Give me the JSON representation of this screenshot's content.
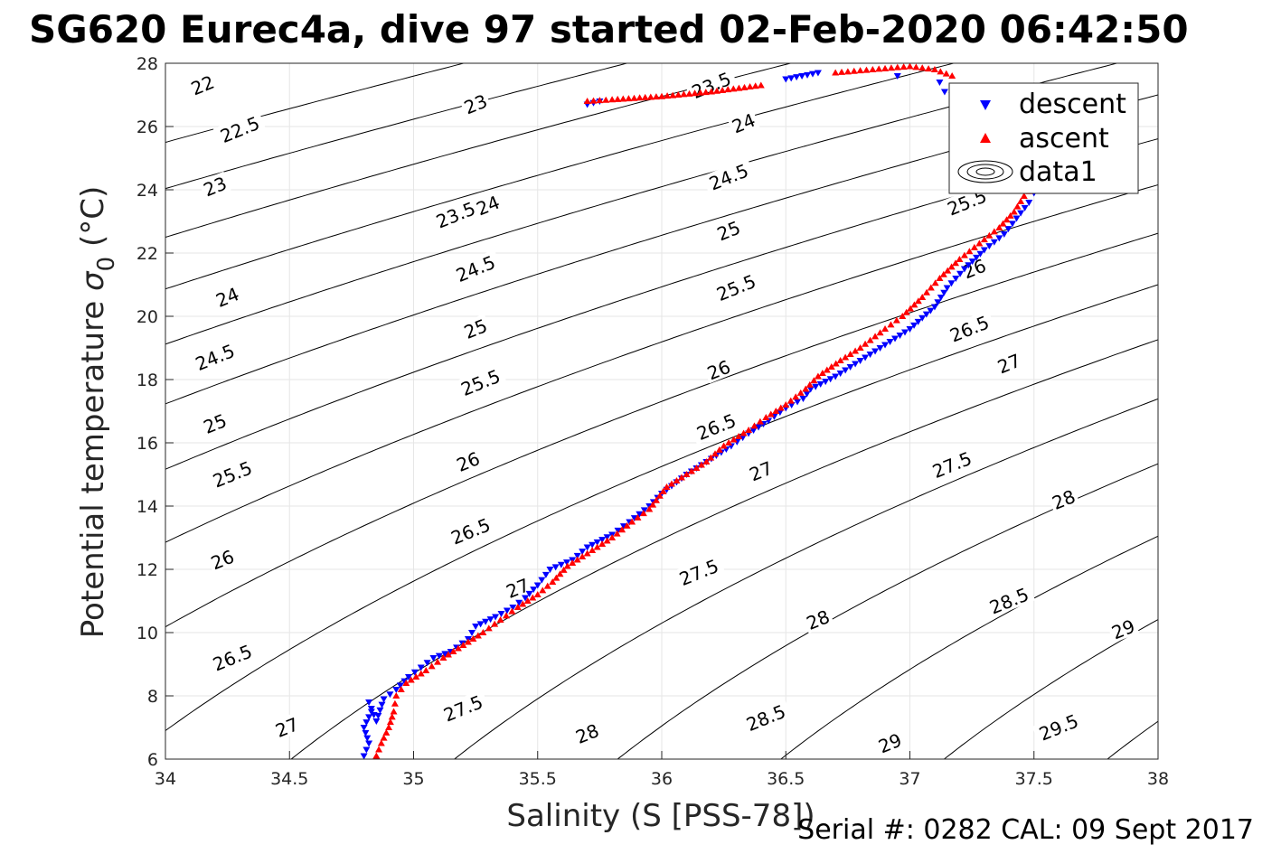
{
  "chart_data": {
    "type": "scatter",
    "title": "SG620 Eurec4a, dive 97 started 02-Feb-2020 06:42:50",
    "xlabel": "Salinity (S [PSS-78])",
    "ylabel_main": "Potential temperature",
    "ylabel_symbol": "σ",
    "ylabel_subscript": "0",
    "ylabel_unit": "(°C)",
    "xlim": [
      34,
      38
    ],
    "ylim": [
      6,
      28
    ],
    "x_ticks": [
      "34",
      "34.5",
      "35",
      "35.5",
      "36",
      "36.5",
      "37",
      "37.5",
      "38"
    ],
    "y_ticks": [
      "6",
      "8",
      "10",
      "12",
      "14",
      "16",
      "18",
      "20",
      "22",
      "24",
      "26",
      "28"
    ],
    "grid": true,
    "legend_placement": "top-right",
    "legend": [
      "descent",
      "ascent",
      "data1"
    ],
    "footer": "Serial #: 0282  CAL: 09 Sept 2017",
    "contour_levels": [
      22,
      22.5,
      23,
      23.5,
      24,
      24.5,
      25,
      25.5,
      26,
      26.5,
      27,
      27.5,
      28,
      28.5,
      29,
      29.5
    ],
    "contour_labels": [
      {
        "text": "22",
        "s": 34.15,
        "t": 27.3
      },
      {
        "text": "22.5",
        "s": 34.3,
        "t": 25.9
      },
      {
        "text": "23",
        "s": 34.2,
        "t": 24.1
      },
      {
        "text": "23",
        "s": 35.25,
        "t": 26.7
      },
      {
        "text": "23.5",
        "s": 35.17,
        "t": 23.2
      },
      {
        "text": "23.5",
        "s": 36.2,
        "t": 27.3
      },
      {
        "text": "24",
        "s": 34.25,
        "t": 20.6
      },
      {
        "text": "24",
        "s": 35.3,
        "t": 23.5
      },
      {
        "text": "24",
        "s": 36.33,
        "t": 26.1
      },
      {
        "text": "24.5",
        "s": 34.2,
        "t": 18.7
      },
      {
        "text": "24.5",
        "s": 35.25,
        "t": 21.5
      },
      {
        "text": "24.5",
        "s": 36.27,
        "t": 24.4
      },
      {
        "text": "25",
        "s": 34.2,
        "t": 16.6
      },
      {
        "text": "25",
        "s": 35.25,
        "t": 19.6
      },
      {
        "text": "25",
        "s": 36.27,
        "t": 22.7
      },
      {
        "text": "25.5",
        "s": 34.27,
        "t": 15.0
      },
      {
        "text": "25.5",
        "s": 35.27,
        "t": 17.9
      },
      {
        "text": "25.5",
        "s": 36.3,
        "t": 20.9
      },
      {
        "text": "25.5",
        "s": 37.23,
        "t": 23.6
      },
      {
        "text": "26",
        "s": 34.23,
        "t": 12.3
      },
      {
        "text": "26",
        "s": 35.22,
        "t": 15.4
      },
      {
        "text": "26",
        "s": 36.23,
        "t": 18.3
      },
      {
        "text": "26",
        "s": 37.26,
        "t": 21.5
      },
      {
        "text": "26.5",
        "s": 34.27,
        "t": 9.2
      },
      {
        "text": "26.5",
        "s": 35.23,
        "t": 13.2
      },
      {
        "text": "26.5",
        "s": 36.22,
        "t": 16.5
      },
      {
        "text": "26.5",
        "s": 37.24,
        "t": 19.6
      },
      {
        "text": "27",
        "s": 34.49,
        "t": 7.0
      },
      {
        "text": "27",
        "s": 35.42,
        "t": 11.4
      },
      {
        "text": "27",
        "s": 36.4,
        "t": 15.1
      },
      {
        "text": "27",
        "s": 37.4,
        "t": 18.5
      },
      {
        "text": "27.5",
        "s": 35.2,
        "t": 7.6
      },
      {
        "text": "27.5",
        "s": 36.15,
        "t": 11.9
      },
      {
        "text": "27.5",
        "s": 37.17,
        "t": 15.3
      },
      {
        "text": "28",
        "s": 35.7,
        "t": 6.8
      },
      {
        "text": "28",
        "s": 36.63,
        "t": 10.4
      },
      {
        "text": "28",
        "s": 37.62,
        "t": 14.2
      },
      {
        "text": "28.5",
        "s": 36.42,
        "t": 7.3
      },
      {
        "text": "28.5",
        "s": 37.4,
        "t": 11.0
      },
      {
        "text": "29",
        "s": 36.92,
        "t": 6.5
      },
      {
        "text": "29",
        "s": 37.86,
        "t": 10.1
      },
      {
        "text": "29.5",
        "s": 37.6,
        "t": 7.0
      }
    ],
    "series": [
      {
        "name": "descent",
        "marker": "triangle-down",
        "color": "#0000ff",
        "points": [
          [
            34.8,
            6.1
          ],
          [
            34.82,
            6.5
          ],
          [
            34.8,
            7.0
          ],
          [
            34.83,
            7.5
          ],
          [
            34.82,
            7.8
          ],
          [
            34.85,
            7.2
          ],
          [
            34.88,
            7.9
          ],
          [
            34.93,
            8.2
          ],
          [
            34.98,
            8.6
          ],
          [
            35.03,
            8.9
          ],
          [
            35.08,
            9.2
          ],
          [
            35.15,
            9.4
          ],
          [
            35.22,
            9.8
          ],
          [
            35.25,
            10.2
          ],
          [
            35.33,
            10.5
          ],
          [
            35.4,
            10.8
          ],
          [
            35.45,
            11.1
          ],
          [
            35.5,
            11.5
          ],
          [
            35.55,
            12.0
          ],
          [
            35.64,
            12.3
          ],
          [
            35.7,
            12.7
          ],
          [
            35.8,
            13.1
          ],
          [
            35.87,
            13.5
          ],
          [
            35.95,
            14.0
          ],
          [
            36.0,
            14.4
          ],
          [
            36.1,
            15.0
          ],
          [
            36.2,
            15.5
          ],
          [
            36.28,
            15.9
          ],
          [
            36.35,
            16.3
          ],
          [
            36.43,
            16.7
          ],
          [
            36.5,
            17.1
          ],
          [
            36.57,
            17.4
          ],
          [
            36.6,
            17.7
          ],
          [
            36.7,
            18.1
          ],
          [
            36.8,
            18.6
          ],
          [
            36.9,
            19.1
          ],
          [
            37.0,
            19.6
          ],
          [
            37.1,
            20.3
          ],
          [
            37.15,
            20.9
          ],
          [
            37.22,
            21.5
          ],
          [
            37.3,
            22.1
          ],
          [
            37.38,
            22.6
          ],
          [
            37.43,
            23.1
          ],
          [
            37.48,
            23.6
          ],
          [
            37.5,
            23.9
          ],
          [
            37.12,
            27.4
          ],
          [
            37.14,
            27.1
          ],
          [
            37.2,
            26.9
          ],
          [
            35.7,
            26.7
          ],
          [
            35.75,
            26.8
          ],
          [
            36.5,
            27.5
          ],
          [
            36.63,
            27.7
          ],
          [
            36.95,
            27.6
          ]
        ]
      },
      {
        "name": "ascent",
        "marker": "triangle-up",
        "color": "#ff0000",
        "points": [
          [
            34.85,
            6.1
          ],
          [
            34.87,
            6.5
          ],
          [
            34.9,
            7.0
          ],
          [
            34.92,
            7.5
          ],
          [
            34.93,
            8.0
          ],
          [
            34.97,
            8.4
          ],
          [
            35.05,
            8.8
          ],
          [
            35.12,
            9.2
          ],
          [
            35.2,
            9.6
          ],
          [
            35.28,
            10.0
          ],
          [
            35.35,
            10.4
          ],
          [
            35.42,
            10.8
          ],
          [
            35.5,
            11.2
          ],
          [
            35.56,
            11.6
          ],
          [
            35.62,
            12.1
          ],
          [
            35.72,
            12.6
          ],
          [
            35.8,
            13.0
          ],
          [
            35.88,
            13.5
          ],
          [
            35.95,
            13.9
          ],
          [
            36.02,
            14.6
          ],
          [
            36.1,
            15.0
          ],
          [
            36.18,
            15.4
          ],
          [
            36.25,
            15.9
          ],
          [
            36.35,
            16.4
          ],
          [
            36.42,
            16.8
          ],
          [
            36.5,
            17.2
          ],
          [
            36.58,
            17.7
          ],
          [
            36.63,
            18.1
          ],
          [
            36.72,
            18.6
          ],
          [
            36.8,
            19.0
          ],
          [
            36.9,
            19.6
          ],
          [
            36.97,
            20.0
          ],
          [
            37.05,
            20.6
          ],
          [
            37.12,
            21.2
          ],
          [
            37.2,
            21.8
          ],
          [
            37.28,
            22.3
          ],
          [
            37.36,
            22.8
          ],
          [
            37.42,
            23.3
          ],
          [
            37.46,
            23.8
          ],
          [
            37.5,
            24.1
          ],
          [
            35.7,
            26.8
          ],
          [
            35.8,
            26.85
          ],
          [
            36.0,
            26.95
          ],
          [
            36.2,
            27.1
          ],
          [
            36.4,
            27.3
          ],
          [
            36.7,
            27.7
          ],
          [
            36.85,
            27.8
          ],
          [
            37.0,
            27.9
          ],
          [
            37.1,
            27.8
          ],
          [
            37.17,
            27.6
          ]
        ]
      }
    ]
  }
}
